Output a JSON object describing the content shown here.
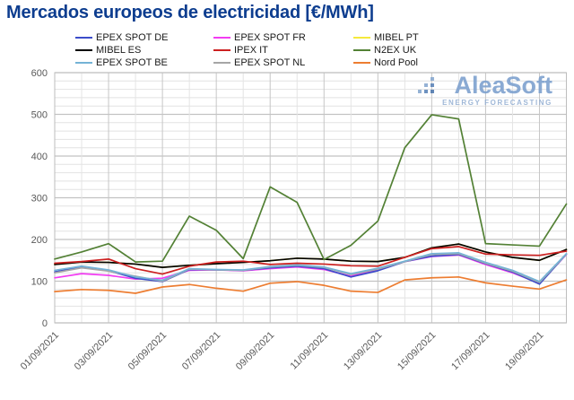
{
  "title": "Mercados europeos de electricidad [€/MWh]",
  "watermark": {
    "name": "AleaSoft",
    "tagline": "ENERGY FORECASTING"
  },
  "chart_data": {
    "type": "line",
    "title": "Mercados europeos de electricidad [€/MWh]",
    "xlabel": "",
    "ylabel": "",
    "ylim": [
      0,
      600
    ],
    "y_ticks": [
      "0",
      "100",
      "200",
      "300",
      "400",
      "500",
      "600"
    ],
    "grid": "major and minor, horizontal minor every 20, vertical every day, darker every labeled date",
    "legend_position": "top",
    "x": [
      "01/09/2021",
      "02/09/2021",
      "03/09/2021",
      "04/09/2021",
      "05/09/2021",
      "06/09/2021",
      "07/09/2021",
      "08/09/2021",
      "09/09/2021",
      "10/09/2021",
      "11/09/2021",
      "12/09/2021",
      "13/09/2021",
      "14/09/2021",
      "15/09/2021",
      "16/09/2021",
      "17/09/2021",
      "18/09/2021",
      "19/09/2021",
      "20/09/2021"
    ],
    "x_labeled_ticks": [
      "01/09/2021",
      "03/09/2021",
      "05/09/2021",
      "07/09/2021",
      "09/09/2021",
      "11/09/2021",
      "13/09/2021",
      "15/09/2021",
      "17/09/2021",
      "19/09/2021"
    ],
    "draw_order": [
      2,
      1,
      0,
      7,
      6,
      3,
      4,
      5,
      8
    ],
    "series": [
      {
        "name": "EPEX SPOT DE",
        "color": "#3b4cca",
        "values": [
          122,
          134,
          125,
          107,
          99,
          128,
          127,
          126,
          132,
          136,
          130,
          110,
          125,
          147,
          160,
          164,
          142,
          122,
          93,
          165
        ]
      },
      {
        "name": "EPEX SPOT FR",
        "color": "#f23cf2",
        "values": [
          108,
          118,
          114,
          105,
          107,
          126,
          127,
          125,
          130,
          134,
          128,
          112,
          128,
          147,
          159,
          163,
          140,
          120,
          95,
          164
        ]
      },
      {
        "name": "MIBEL PT",
        "color": "#f5e93c",
        "values": [
          140,
          146,
          145,
          141,
          133,
          138,
          142,
          145,
          149,
          155,
          153,
          148,
          147,
          157,
          180,
          189,
          170,
          157,
          150,
          176
        ]
      },
      {
        "name": "MIBEL ES",
        "color": "#000000",
        "values": [
          140,
          146,
          145,
          141,
          133,
          138,
          142,
          145,
          149,
          155,
          153,
          148,
          147,
          157,
          180,
          189,
          170,
          157,
          150,
          176
        ]
      },
      {
        "name": "IPEX IT",
        "color": "#cc2020",
        "values": [
          143,
          147,
          153,
          130,
          117,
          136,
          146,
          148,
          140,
          143,
          141,
          137,
          136,
          157,
          178,
          183,
          165,
          163,
          162,
          172
        ]
      },
      {
        "name": "N2EX UK",
        "color": "#538135",
        "values": [
          153,
          170,
          190,
          146,
          148,
          256,
          222,
          154,
          326,
          289,
          152,
          186,
          244,
          420,
          499,
          489,
          190,
          187,
          184,
          285
        ]
      },
      {
        "name": "EPEX SPOT BE",
        "color": "#74b3d6",
        "values": [
          126,
          136,
          127,
          110,
          102,
          130,
          128,
          127,
          135,
          139,
          134,
          118,
          131,
          148,
          166,
          168,
          145,
          126,
          99,
          166
        ]
      },
      {
        "name": "EPEX SPOT NL",
        "color": "#a6a6a6",
        "values": [
          120,
          132,
          124,
          112,
          100,
          129,
          127,
          126,
          134,
          138,
          133,
          116,
          129,
          147,
          164,
          166,
          143,
          124,
          97,
          165
        ]
      },
      {
        "name": "Nord Pool",
        "color": "#ed7d31",
        "values": [
          75,
          80,
          78,
          71,
          86,
          92,
          83,
          76,
          95,
          99,
          90,
          76,
          73,
          103,
          108,
          110,
          96,
          88,
          81,
          103
        ]
      }
    ]
  }
}
